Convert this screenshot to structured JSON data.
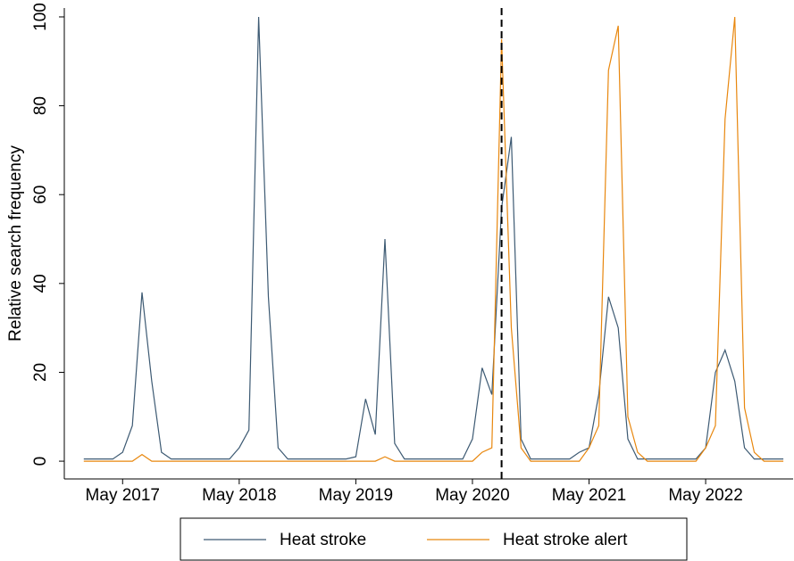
{
  "chart_data": {
    "type": "line",
    "y_label": "Relative search frequency",
    "x": [
      "2017-01",
      "2017-02",
      "2017-03",
      "2017-04",
      "2017-05",
      "2017-06",
      "2017-07",
      "2017-08",
      "2017-09",
      "2017-10",
      "2017-11",
      "2017-12",
      "2018-01",
      "2018-02",
      "2018-03",
      "2018-04",
      "2018-05",
      "2018-06",
      "2018-07",
      "2018-08",
      "2018-09",
      "2018-10",
      "2018-11",
      "2018-12",
      "2019-01",
      "2019-02",
      "2019-03",
      "2019-04",
      "2019-05",
      "2019-06",
      "2019-07",
      "2019-08",
      "2019-09",
      "2019-10",
      "2019-11",
      "2019-12",
      "2020-01",
      "2020-02",
      "2020-03",
      "2020-04",
      "2020-05",
      "2020-06",
      "2020-07",
      "2020-08",
      "2020-09",
      "2020-10",
      "2020-11",
      "2020-12",
      "2021-01",
      "2021-02",
      "2021-03",
      "2021-04",
      "2021-05",
      "2021-06",
      "2021-07",
      "2021-08",
      "2021-09",
      "2021-10",
      "2021-11",
      "2021-12",
      "2022-01",
      "2022-02",
      "2022-03",
      "2022-04",
      "2022-05",
      "2022-06",
      "2022-07",
      "2022-08",
      "2022-09",
      "2022-10",
      "2022-11",
      "2022-12",
      "2023-01"
    ],
    "series": [
      {
        "name": "Heat stroke",
        "color": "#3d5a73",
        "values": [
          0.5,
          0.5,
          0.5,
          0.5,
          2,
          8,
          38,
          18,
          2,
          0.5,
          0.5,
          0.5,
          0.5,
          0.5,
          0.5,
          0.5,
          3,
          7,
          100,
          37,
          3,
          0.5,
          0.5,
          0.5,
          0.5,
          0.5,
          0.5,
          0.5,
          1,
          14,
          6,
          50,
          4,
          0.5,
          0.5,
          0.5,
          0.5,
          0.5,
          0.5,
          0.5,
          5,
          21,
          15,
          57,
          73,
          5,
          0.5,
          0.5,
          0.5,
          0.5,
          0.5,
          2,
          3,
          15,
          37,
          30,
          5,
          0.5,
          0.5,
          0.5,
          0.5,
          0.5,
          0.5,
          0.5,
          3,
          20,
          25,
          18,
          3,
          0.5,
          0.5,
          0.5,
          0.5
        ]
      },
      {
        "name": "Heat stroke alert",
        "color": "#e8870e",
        "values": [
          0,
          0,
          0,
          0,
          0,
          0,
          1.5,
          0,
          0,
          0,
          0,
          0,
          0,
          0,
          0,
          0,
          0,
          0,
          0,
          0,
          0,
          0,
          0,
          0,
          0,
          0,
          0,
          0,
          0,
          0,
          0,
          1,
          0,
          0,
          0,
          0,
          0,
          0,
          0,
          0,
          0,
          2,
          3,
          95,
          30,
          3,
          0,
          0,
          0,
          0,
          0,
          0,
          3,
          8,
          88,
          98,
          10,
          2,
          0,
          0,
          0,
          0,
          0,
          0,
          3,
          8,
          77,
          100,
          12,
          2,
          0,
          0,
          0
        ]
      }
    ],
    "xlim": [
      "2016-11",
      "2023-02"
    ],
    "xticks": [
      {
        "value": "2017-05",
        "label": "May 2017"
      },
      {
        "value": "2018-05",
        "label": "May 2018"
      },
      {
        "value": "2019-05",
        "label": "May 2019"
      },
      {
        "value": "2020-05",
        "label": "May 2020"
      },
      {
        "value": "2021-05",
        "label": "May 2021"
      },
      {
        "value": "2022-05",
        "label": "May 2022"
      }
    ],
    "ylim": [
      -4,
      102
    ],
    "yticks": [
      0,
      20,
      40,
      60,
      80,
      100
    ],
    "vline": "2020-08",
    "grid": false,
    "legend": "bottom"
  }
}
